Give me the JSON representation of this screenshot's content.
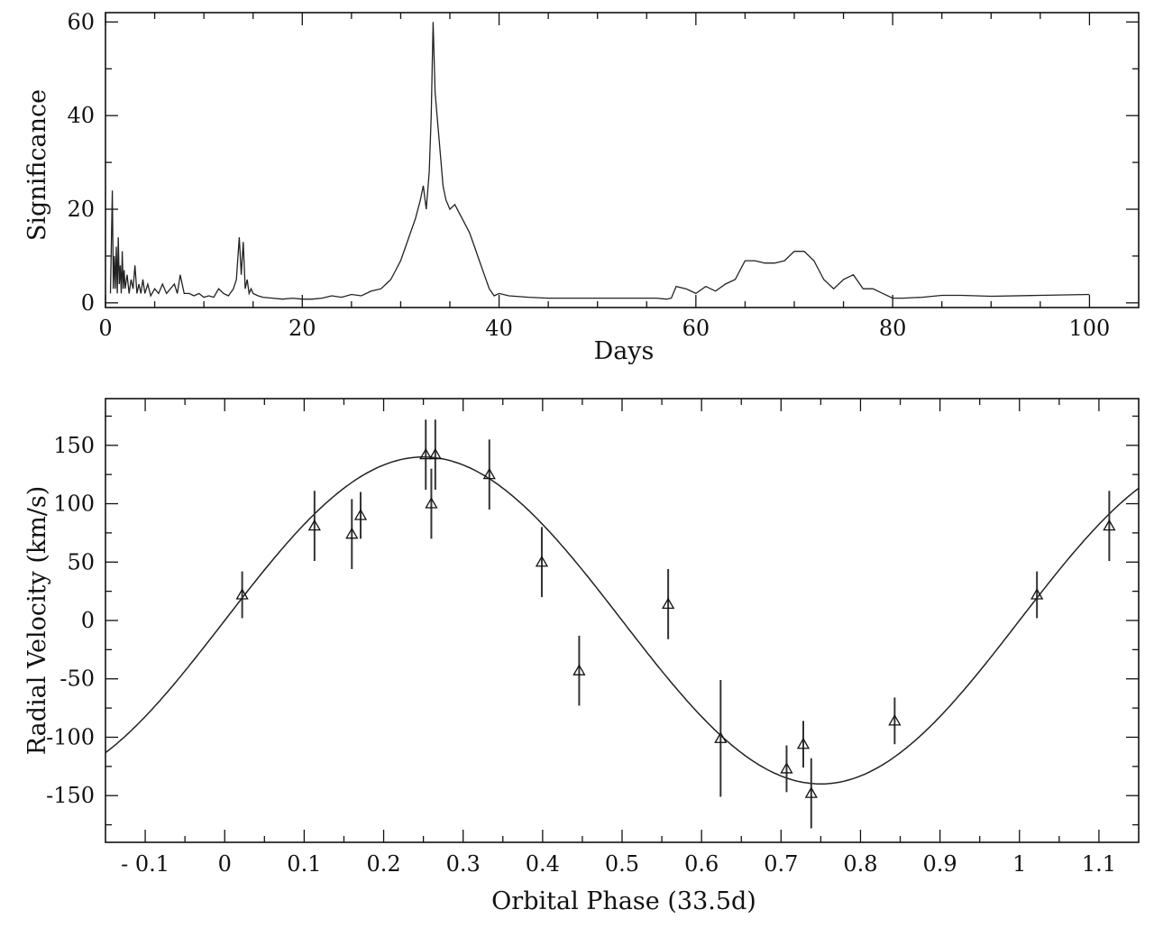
{
  "chart_data": [
    {
      "type": "line",
      "title": "",
      "xlabel": "Days",
      "ylabel": "Significance",
      "xlim": [
        0,
        105
      ],
      "ylim": [
        -1,
        62
      ],
      "xticks": [
        0,
        20,
        40,
        60,
        80,
        100
      ],
      "yticks": [
        0,
        20,
        40,
        60
      ],
      "grid": false,
      "series": [
        {
          "x": [
            0.5,
            0.7,
            0.8,
            0.9,
            1.0,
            1.1,
            1.2,
            1.3,
            1.4,
            1.5,
            1.6,
            1.7,
            1.8,
            1.9,
            2.0,
            2.2,
            2.4,
            2.6,
            2.8,
            3.0,
            3.2,
            3.4,
            3.6,
            3.8,
            4.0,
            4.3,
            4.6,
            5.0,
            5.4,
            5.8,
            6.2,
            6.6,
            7.0,
            7.3,
            7.6,
            8.0,
            8.5,
            9.0,
            9.5,
            10.0,
            10.5,
            11.0,
            11.5,
            12.0,
            12.5,
            13.0,
            13.3,
            13.6,
            13.8,
            14.0,
            14.2,
            14.4,
            14.6,
            14.8,
            15.0,
            15.5,
            16,
            17,
            18,
            19,
            20,
            21,
            22,
            23,
            24,
            25,
            26,
            27,
            28,
            28.5,
            29,
            29.5,
            30,
            30.5,
            31,
            31.5,
            32,
            32.3,
            32.6,
            32.9,
            33.1,
            33.3,
            33.5,
            33.7,
            33.9,
            34.1,
            34.3,
            34.6,
            35,
            35.5,
            36,
            36.5,
            37,
            37.5,
            38,
            38.5,
            39,
            39.5,
            40,
            41,
            43,
            45,
            48,
            52,
            55,
            56,
            57,
            57.5,
            58,
            59,
            60,
            61,
            62,
            63,
            64,
            65,
            66,
            67,
            68,
            69,
            70,
            71,
            72,
            72.5,
            73,
            74,
            75,
            76,
            77,
            78,
            79,
            80,
            81,
            83,
            85,
            87,
            90,
            95,
            100
          ],
          "y": [
            2,
            24,
            3,
            10,
            3,
            12,
            2,
            14,
            4,
            8,
            2,
            11,
            3,
            7,
            3,
            6,
            2,
            5,
            3,
            8,
            2,
            4,
            2,
            5,
            2,
            4,
            1.5,
            3,
            2,
            4,
            2,
            3,
            4,
            2,
            6,
            2,
            2,
            1.5,
            2,
            1.2,
            1.5,
            1.2,
            3,
            2,
            1.5,
            3,
            5,
            14,
            6,
            13,
            3,
            5,
            2,
            3,
            2,
            1.5,
            1.2,
            1,
            0.8,
            1,
            0.8,
            0.8,
            1,
            1.5,
            1.2,
            1.8,
            1.5,
            2.5,
            3,
            4,
            5,
            7,
            9,
            12,
            15,
            18,
            22,
            25,
            20,
            28,
            40,
            60,
            45,
            40,
            35,
            30,
            25,
            22,
            20,
            21,
            19,
            17,
            15,
            12,
            9,
            6,
            3,
            1.5,
            2,
            1.5,
            1.2,
            1,
            1,
            1,
            1,
            1,
            0.8,
            1,
            3.5,
            3,
            2,
            3.5,
            2.5,
            4,
            5,
            9,
            9,
            8.5,
            8.5,
            9,
            11,
            11,
            9,
            7,
            5,
            3,
            5,
            6,
            3,
            3,
            2,
            1,
            1,
            1.2,
            1.6,
            1.6,
            1.4,
            1.6,
            1.8
          ]
        }
      ]
    },
    {
      "type": "scatter",
      "title": "",
      "xlabel": "Orbital Phase (33.5d)",
      "ylabel": "Radial Velocity (km/s)",
      "xlim": [
        -0.15,
        1.15
      ],
      "ylim": [
        -190,
        190
      ],
      "xticks": [
        -0.1,
        0,
        0.1,
        0.2,
        0.3,
        0.4,
        0.5,
        0.6,
        0.7,
        0.8,
        0.9,
        1,
        1.1
      ],
      "xtick_labels": [
        "- 0.1",
        "0",
        "0.1",
        "0.2",
        "0.3",
        "0.4",
        "0.5",
        "0.6",
        "0.7",
        "0.8",
        "0.9",
        "1",
        "1.1"
      ],
      "yticks": [
        150,
        100,
        50,
        0,
        -50,
        -100,
        -150
      ],
      "ytick_labels": [
        "150",
        "100",
        "50",
        "0",
        "-50",
        "-100",
        "-150"
      ],
      "grid": false,
      "points": [
        {
          "x": 0.022,
          "y": 22,
          "err": 20
        },
        {
          "x": 0.113,
          "y": 81,
          "err": 30
        },
        {
          "x": 0.16,
          "y": 74,
          "err": 30
        },
        {
          "x": 0.171,
          "y": 90,
          "err": 20
        },
        {
          "x": 0.253,
          "y": 142,
          "err": 30
        },
        {
          "x": 0.26,
          "y": 100,
          "err": 30
        },
        {
          "x": 0.265,
          "y": 142,
          "err": 30
        },
        {
          "x": 0.333,
          "y": 125,
          "err": 30
        },
        {
          "x": 0.399,
          "y": 50,
          "err": 30
        },
        {
          "x": 0.446,
          "y": -43,
          "err": 30
        },
        {
          "x": 0.558,
          "y": 14,
          "err": 30
        },
        {
          "x": 0.624,
          "y": -101,
          "err": 50
        },
        {
          "x": 0.707,
          "y": -127,
          "err": 20
        },
        {
          "x": 0.728,
          "y": -106,
          "err": 20
        },
        {
          "x": 0.738,
          "y": -148,
          "err": 30
        },
        {
          "x": 0.843,
          "y": -86,
          "err": 20
        },
        {
          "x": 1.022,
          "y": 22,
          "err": 20
        },
        {
          "x": 1.113,
          "y": 81,
          "err": 30
        }
      ],
      "fit": {
        "type": "sinusoid",
        "amplitude": 140,
        "period": 1,
        "zero_phase": 0
      }
    }
  ]
}
